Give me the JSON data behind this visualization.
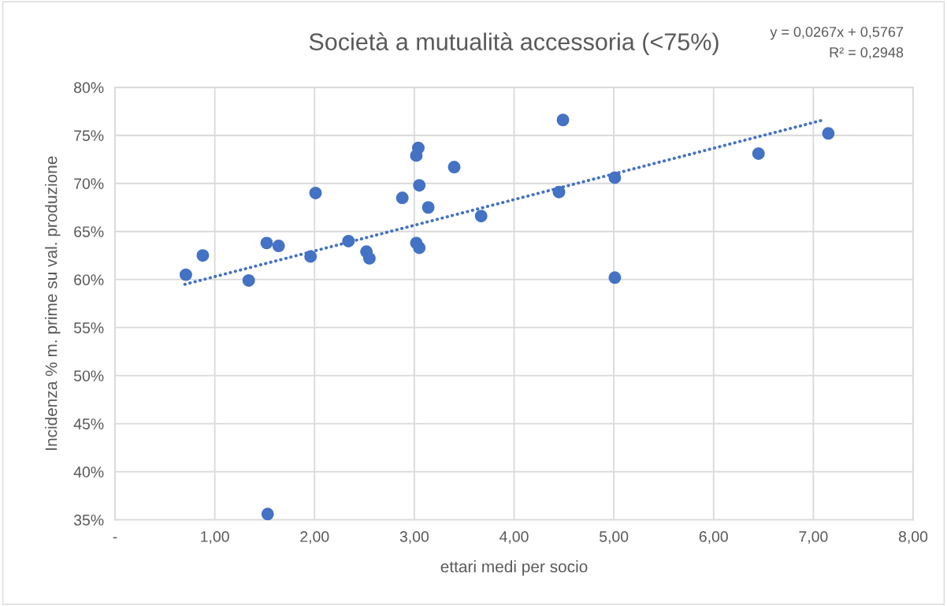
{
  "chart_data": {
    "type": "scatter",
    "title": "Società a mutualità accessoria (<75%)",
    "xlabel": "ettari medi per socio",
    "ylabel": "Incidenza % m. prime su val. produzione",
    "annotations": [
      "y = 0,0267x + 0,5767",
      "R² = 0,2948"
    ],
    "series": [
      {
        "color": "#4472c4",
        "marker": "circle",
        "x": [
          0.71,
          0.88,
          1.34,
          1.52,
          1.64,
          1.53,
          1.96,
          2.01,
          2.34,
          2.52,
          2.55,
          2.88,
          3.04,
          3.02,
          3.05,
          3.14,
          3.4,
          3.02,
          3.05,
          3.67,
          4.49,
          4.45,
          5.01,
          5.01,
          6.45,
          7.15
        ],
        "values": [
          60.5,
          62.5,
          59.9,
          63.8,
          63.5,
          35.6,
          62.4,
          69.0,
          64.0,
          62.9,
          62.2,
          68.5,
          73.7,
          72.9,
          69.8,
          67.5,
          71.7,
          63.8,
          63.3,
          66.6,
          76.6,
          69.1,
          70.6,
          60.2,
          73.1,
          75.2
        ]
      },
      {
        "type": "line",
        "color": "#4472c4",
        "line_style": "dotted",
        "x": [
          0.7,
          7.1
        ],
        "values": [
          59.5,
          76.6
        ]
      }
    ],
    "xlim": [
      0,
      8
    ],
    "xticks": [
      {
        "value": 0,
        "label": "-"
      },
      {
        "value": 1,
        "label": "1,00"
      },
      {
        "value": 2,
        "label": "2,00"
      },
      {
        "value": 3,
        "label": "3,00"
      },
      {
        "value": 4,
        "label": "4,00"
      },
      {
        "value": 5,
        "label": "5,00"
      },
      {
        "value": 6,
        "label": "6,00"
      },
      {
        "value": 7,
        "label": "7,00"
      },
      {
        "value": 8,
        "label": "8,00"
      }
    ],
    "ylim": [
      35,
      80
    ],
    "yticks": [
      {
        "value": 35,
        "label": "35%"
      },
      {
        "value": 40,
        "label": "40%"
      },
      {
        "value": 45,
        "label": "45%"
      },
      {
        "value": 50,
        "label": "50%"
      },
      {
        "value": 55,
        "label": "55%"
      },
      {
        "value": 60,
        "label": "60%"
      },
      {
        "value": 65,
        "label": "65%"
      },
      {
        "value": 70,
        "label": "70%"
      },
      {
        "value": 75,
        "label": "75%"
      },
      {
        "value": 80,
        "label": "80%"
      }
    ],
    "grid": true
  }
}
